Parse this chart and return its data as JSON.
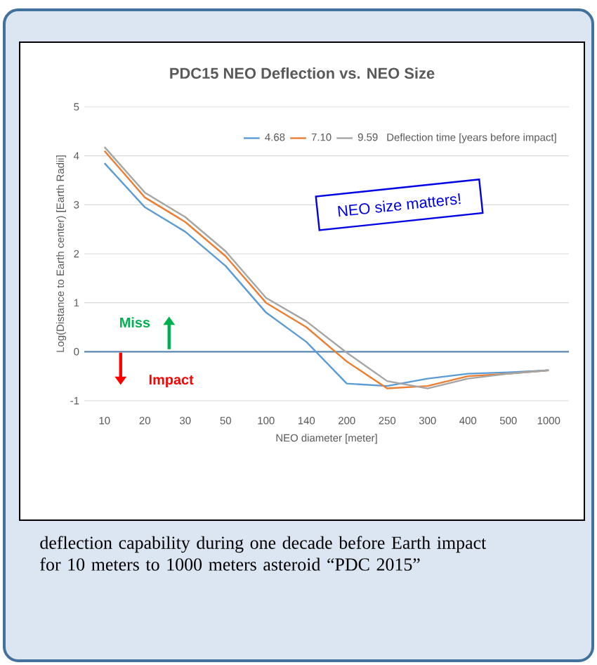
{
  "chart_data": {
    "type": "line",
    "title": "PDC15 NEO Deflection vs. NEO Size",
    "xlabel": "NEO diameter [meter]",
    "ylabel": "Log(Distance to Earth center) [Earth Radii]",
    "legend_title": "Deflection time [years before impact]",
    "categories": [
      "10",
      "20",
      "30",
      "50",
      "100",
      "140",
      "200",
      "250",
      "300",
      "400",
      "500",
      "1000"
    ],
    "series": [
      {
        "name": "4.68",
        "color": "#5b9bd5",
        "values": [
          3.85,
          2.95,
          2.45,
          1.75,
          0.8,
          0.2,
          -0.65,
          -0.7,
          -0.55,
          -0.45,
          -0.42,
          -0.38
        ]
      },
      {
        "name": "7.10",
        "color": "#ed7d31",
        "values": [
          4.1,
          3.15,
          2.65,
          1.95,
          1.0,
          0.5,
          -0.2,
          -0.75,
          -0.7,
          -0.5,
          -0.45,
          -0.38
        ]
      },
      {
        "name": "9.59",
        "color": "#a5a5a5",
        "values": [
          4.18,
          3.25,
          2.75,
          2.05,
          1.1,
          0.62,
          -0.02,
          -0.6,
          -0.75,
          -0.55,
          -0.45,
          -0.38
        ]
      }
    ],
    "ref_lines": [
      {
        "axis": "y",
        "value": 0,
        "color": "#5b87b5"
      }
    ],
    "ylim": [
      -1,
      5
    ],
    "yticks": [
      -1,
      0,
      1,
      2,
      3,
      4,
      5
    ],
    "grid": "y",
    "legend": "top right",
    "annotations": [
      "NEO size matters!",
      "Miss",
      "Impact",
      "deflection capability during one decade before Earth impact for 10 meters to 1000 meters asteroid “PDC 2015”"
    ]
  }
}
